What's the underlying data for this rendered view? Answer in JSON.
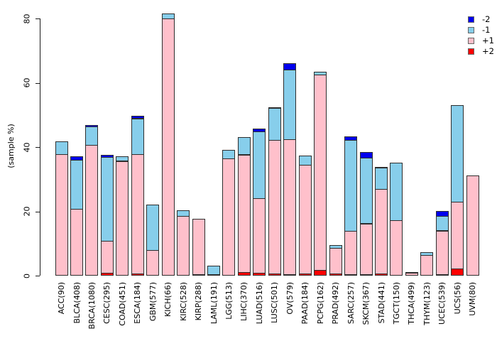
{
  "figure": {
    "ylabel": "(sample %)",
    "background": "#ffffff"
  },
  "legend": {
    "position": "top-right",
    "items": [
      {
        "label": "-2",
        "color": "#0000EE"
      },
      {
        "label": "-1",
        "color": "#87CEEB"
      },
      {
        "label": "+1",
        "color": "#FFC0CB"
      },
      {
        "label": "+2",
        "color": "#FF0000"
      }
    ]
  },
  "chart_data": {
    "type": "bar",
    "stacked": true,
    "title": "",
    "xlabel": "",
    "ylabel": "(sample %)",
    "ylim": [
      0,
      80
    ],
    "yticks": [
      0,
      20,
      40,
      60,
      80
    ],
    "grid": false,
    "legend_position": "top-right",
    "stack_order_bottom_to_top": [
      "+2",
      "+1",
      "-1",
      "-2"
    ],
    "categories": [
      "ACC(90)",
      "BLCA(408)",
      "BRCA(1080)",
      "CESC(295)",
      "COAD(451)",
      "ESCA(184)",
      "GBM(577)",
      "KICH(66)",
      "KIRC(528)",
      "KIRP(288)",
      "LAML(191)",
      "LGG(513)",
      "LIHC(370)",
      "LUAD(516)",
      "LUSC(501)",
      "OV(579)",
      "PAAD(184)",
      "PCPG(162)",
      "PRAD(492)",
      "SARC(257)",
      "SKCM(367)",
      "STAD(441)",
      "TGCT(150)",
      "THCA(499)",
      "THYM(123)",
      "UCEC(539)",
      "UCS(56)",
      "UVM(80)"
    ],
    "series": [
      {
        "name": "+2",
        "color": "#FF0000",
        "values": [
          0,
          0,
          0,
          0.9,
          0,
          0.6,
          0,
          0,
          0,
          0.3,
          0,
          0,
          1.2,
          0.9,
          0.6,
          0.5,
          0.7,
          1.8,
          0.7,
          0.3,
          0.2,
          0.7,
          0,
          0,
          0,
          0.3,
          2.3,
          0
        ]
      },
      {
        "name": "+1",
        "color": "#FFC0CB",
        "values": [
          37.7,
          20.8,
          40.7,
          10.1,
          35.7,
          37.4,
          8.0,
          80.0,
          18.6,
          17.5,
          0.5,
          36.4,
          36.7,
          23.4,
          41.9,
          42.2,
          34.1,
          61.0,
          8.2,
          13.8,
          16.1,
          26.5,
          17.3,
          1.0,
          6.5,
          13.9,
          20.9,
          31.1
        ]
      },
      {
        "name": "-1",
        "color": "#87CEEB",
        "values": [
          4.4,
          15.5,
          5.9,
          26.4,
          1.7,
          11.4,
          14.4,
          1.8,
          1.9,
          0,
          2.9,
          3.0,
          5.6,
          21.1,
          10.1,
          21.9,
          3.1,
          1.0,
          1.1,
          28.6,
          20.6,
          6.8,
          18.0,
          0.3,
          1.1,
          4.7,
          30.4,
          0
        ]
      },
      {
        "name": "-2",
        "color": "#0000EE",
        "values": [
          0,
          1.3,
          0.6,
          0.9,
          0,
          1.0,
          0,
          0,
          0,
          0,
          0,
          0,
          0,
          1.1,
          0.5,
          2.2,
          0,
          0,
          0,
          1.3,
          2.0,
          0.5,
          0,
          0,
          0,
          1.8,
          0,
          0
        ]
      }
    ]
  }
}
